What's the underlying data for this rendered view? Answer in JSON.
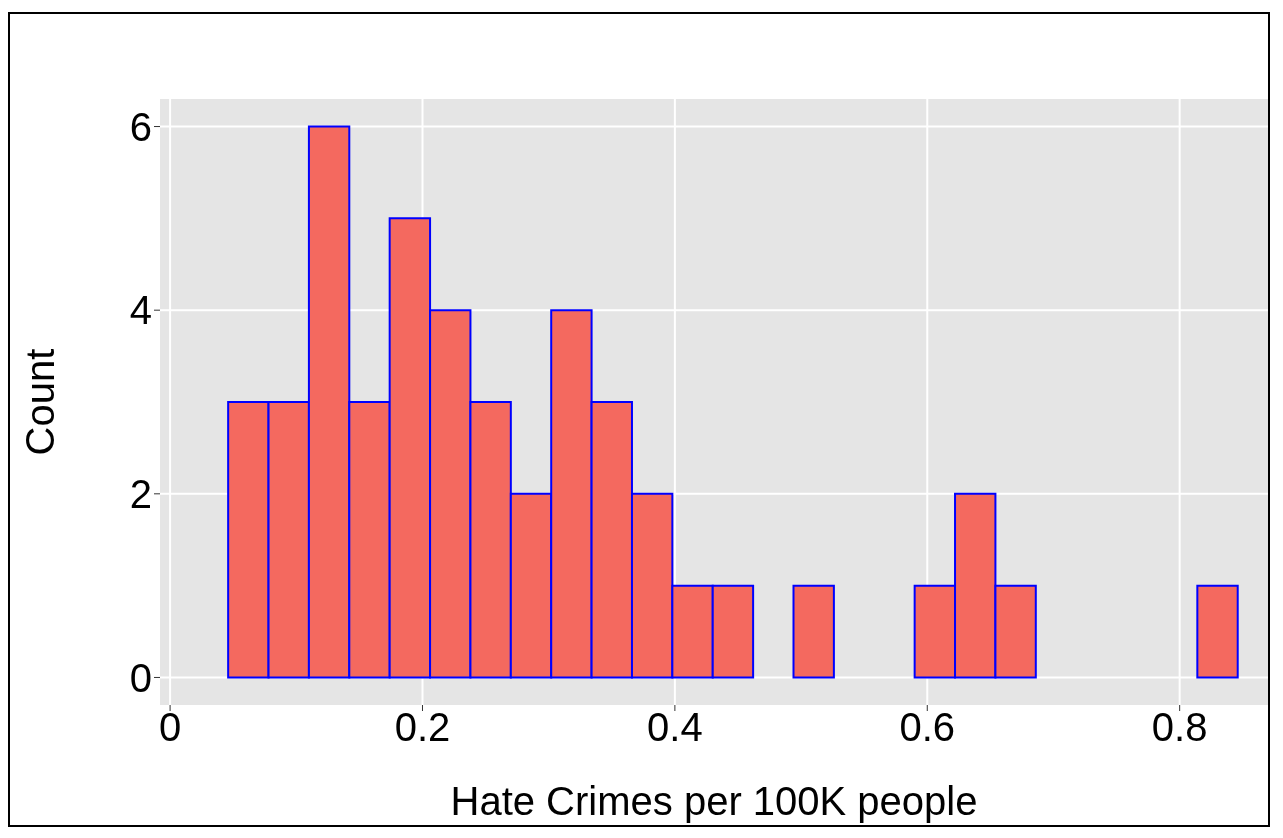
{
  "chart_data": {
    "type": "histogram",
    "xlabel": "Hate Crimes per 100K people",
    "ylabel": "Count",
    "bins": [
      0.046,
      0.078,
      0.11,
      0.142,
      0.174,
      0.206,
      0.238,
      0.27,
      0.302,
      0.334,
      0.366,
      0.398,
      0.43,
      0.462,
      0.494,
      0.526,
      0.558,
      0.59,
      0.622,
      0.654,
      0.686,
      0.718,
      0.75,
      0.782,
      0.814,
      0.846
    ],
    "values": [
      3,
      3,
      6,
      3,
      5,
      4,
      3,
      2,
      4,
      3,
      2,
      1,
      1,
      0,
      1,
      0,
      0,
      1,
      2,
      1,
      0,
      0,
      0,
      0,
      1
    ],
    "color": "#f4695f",
    "xlim": [
      -0.008,
      0.87
    ],
    "xticks": [
      {
        "value": 0,
        "label": "0"
      },
      0.2,
      0.4,
      0.6,
      0.8
    ],
    "ylim": [
      -0.3,
      6.3
    ],
    "yticks": [
      0,
      2,
      4,
      6
    ],
    "grid": true
  }
}
